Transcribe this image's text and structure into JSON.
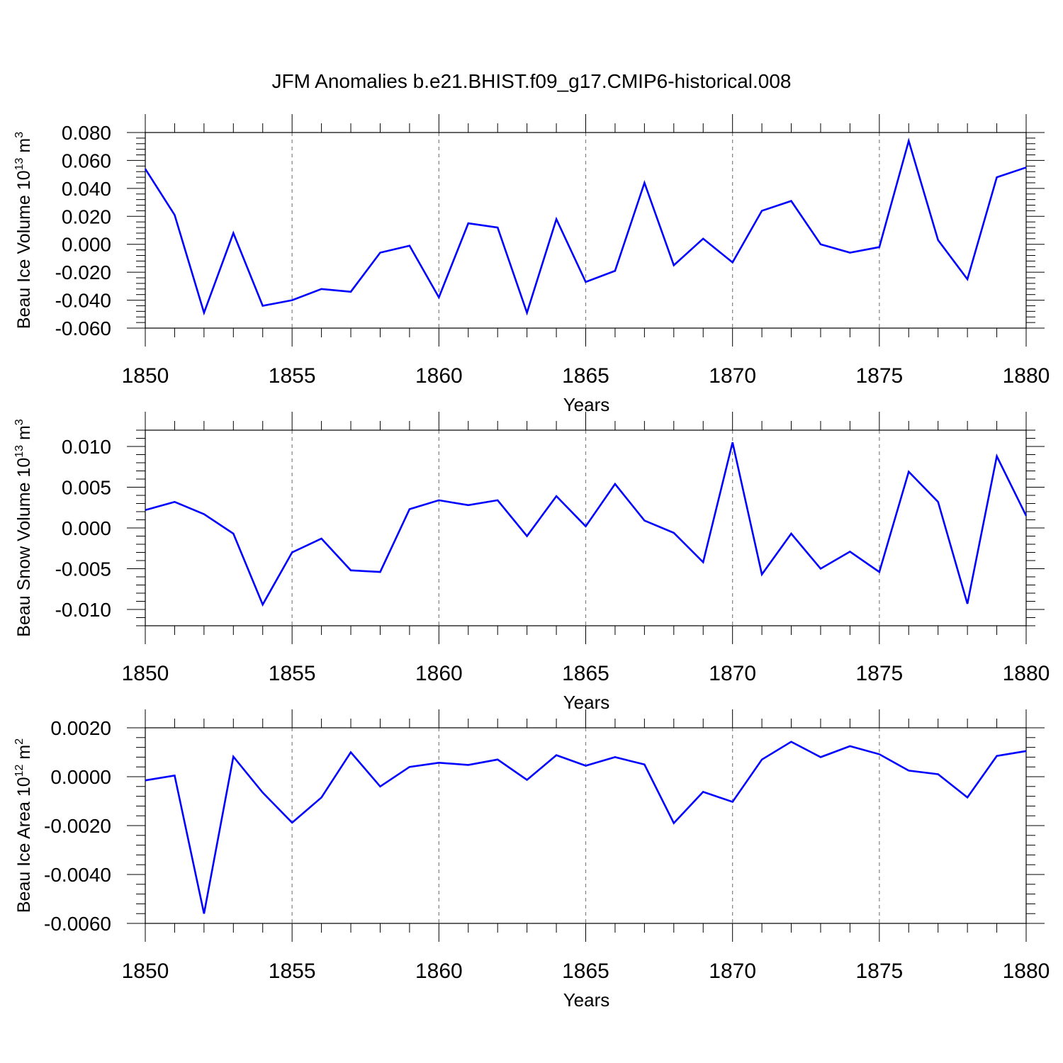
{
  "title": "JFM Anomalies b.e21.BHIST.f09_g17.CMIP6-historical.008",
  "colors": {
    "series": "#0000ff",
    "axis": "#000000",
    "grid": "#808080"
  },
  "chart_data": [
    {
      "type": "line",
      "ylabel": "Beau Ice Volume 10",
      "ylabel_exp": "13",
      "ylabel_unit": " m",
      "ylabel_unit_exp": "3",
      "xlabel": "Years",
      "xlim": [
        1850,
        1880
      ],
      "ylim": [
        -0.06,
        0.08
      ],
      "xticks": [
        "1850",
        "1855",
        "1860",
        "1865",
        "1870",
        "1875",
        "1880"
      ],
      "ytick_values": [
        0.08,
        0.06,
        0.04,
        0.02,
        0.0,
        -0.02,
        -0.04,
        -0.06
      ],
      "ytick_labels": [
        "0.080",
        "0.060",
        "0.040",
        "0.020",
        "0.000",
        "-0.020",
        "-0.040",
        "-0.060"
      ],
      "grid": "vertical dashed at major x ticks",
      "x": [
        1850,
        1851,
        1852,
        1853,
        1854,
        1855,
        1856,
        1857,
        1858,
        1859,
        1860,
        1861,
        1862,
        1863,
        1864,
        1865,
        1866,
        1867,
        1868,
        1869,
        1870,
        1871,
        1872,
        1873,
        1874,
        1875,
        1876,
        1877,
        1878,
        1879,
        1880
      ],
      "y": [
        0.054,
        0.021,
        -0.049,
        0.008,
        -0.044,
        -0.04,
        -0.032,
        -0.034,
        -0.006,
        -0.001,
        -0.038,
        0.015,
        0.012,
        -0.049,
        0.018,
        -0.027,
        -0.019,
        0.044,
        -0.015,
        0.004,
        -0.013,
        0.024,
        0.031,
        0.0,
        -0.006,
        -0.002,
        0.074,
        0.003,
        -0.025,
        0.048,
        0.055
      ]
    },
    {
      "type": "line",
      "ylabel": "Beau Snow Volume 10",
      "ylabel_exp": "13",
      "ylabel_unit": " m",
      "ylabel_unit_exp": "3",
      "xlabel": "Years",
      "xlim": [
        1850,
        1880
      ],
      "ylim": [
        -0.012,
        0.012
      ],
      "xticks": [
        "1850",
        "1855",
        "1860",
        "1865",
        "1870",
        "1875",
        "1880"
      ],
      "ytick_values": [
        0.01,
        0.005,
        0.0,
        -0.005,
        -0.01
      ],
      "ytick_labels": [
        "0.010",
        "0.005",
        "0.000",
        "-0.005",
        "-0.010"
      ],
      "grid": "vertical dashed at major x ticks",
      "x": [
        1850,
        1851,
        1852,
        1853,
        1854,
        1855,
        1856,
        1857,
        1858,
        1859,
        1860,
        1861,
        1862,
        1863,
        1864,
        1865,
        1866,
        1867,
        1868,
        1869,
        1870,
        1871,
        1872,
        1873,
        1874,
        1875,
        1876,
        1877,
        1878,
        1879,
        1880
      ],
      "y": [
        0.0022,
        0.0032,
        0.0017,
        -0.0007,
        -0.0094,
        -0.003,
        -0.0013,
        -0.0052,
        -0.0054,
        0.0023,
        0.0034,
        0.0028,
        0.0034,
        -0.001,
        0.0039,
        0.0002,
        0.0054,
        0.0009,
        -0.0006,
        -0.0042,
        0.0105,
        -0.0057,
        -0.0007,
        -0.005,
        -0.0029,
        -0.0054,
        0.0069,
        0.0032,
        -0.0093,
        0.0088,
        0.0015
      ]
    },
    {
      "type": "line",
      "ylabel": "Beau Ice Area 10",
      "ylabel_exp": "12",
      "ylabel_unit": " m",
      "ylabel_unit_exp": "2",
      "xlabel": "Years",
      "xlim": [
        1850,
        1880
      ],
      "ylim": [
        -0.006,
        0.002
      ],
      "xticks": [
        "1850",
        "1855",
        "1860",
        "1865",
        "1870",
        "1875",
        "1880"
      ],
      "ytick_values": [
        0.002,
        0.0,
        -0.002,
        -0.004,
        -0.006
      ],
      "ytick_labels": [
        "0.0020",
        "0.0000",
        "-0.0020",
        "-0.0040",
        "-0.0060"
      ],
      "grid": "vertical dashed at major x ticks",
      "x": [
        1850,
        1851,
        1852,
        1853,
        1854,
        1855,
        1856,
        1857,
        1858,
        1859,
        1860,
        1861,
        1862,
        1863,
        1864,
        1865,
        1866,
        1867,
        1868,
        1869,
        1870,
        1871,
        1872,
        1873,
        1874,
        1875,
        1876,
        1877,
        1878,
        1879,
        1880
      ],
      "y": [
        -0.00015,
        5e-05,
        -0.0056,
        0.00082,
        -0.00065,
        -0.00188,
        -0.00085,
        0.001,
        -0.0004,
        0.0004,
        0.00057,
        0.00048,
        0.0007,
        -0.00013,
        0.00088,
        0.00045,
        0.0008,
        0.0005,
        -0.0019,
        -0.00062,
        -0.00103,
        0.0007,
        0.00143,
        0.0008,
        0.00125,
        0.00092,
        0.00025,
        0.0001,
        -0.00085,
        0.00085,
        0.00105
      ]
    }
  ]
}
